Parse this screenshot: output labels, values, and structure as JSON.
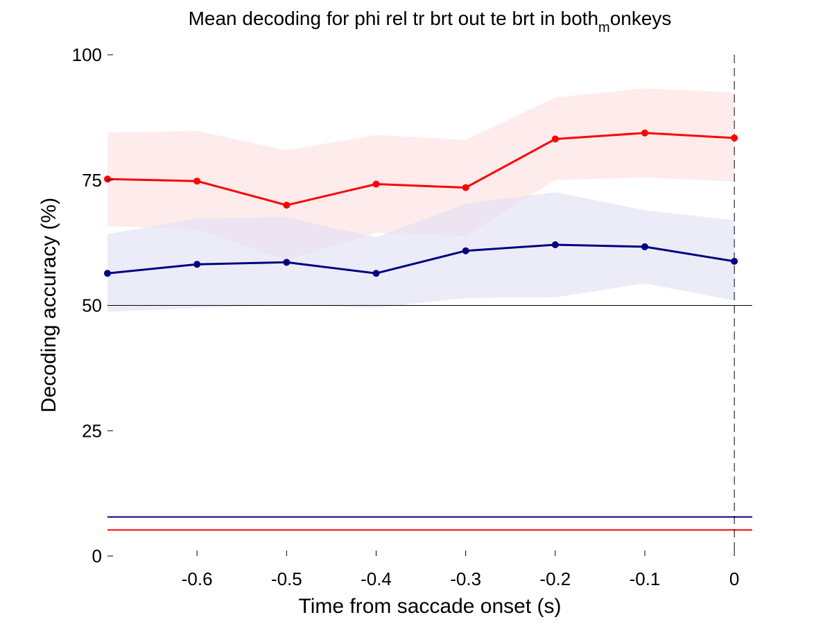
{
  "chart_data": {
    "type": "line",
    "title": {
      "main": "Mean decoding for phi rel tr brt out te brt in  both",
      "subscript": "m",
      "tail": "onkeys"
    },
    "xlabel": "Time from saccade onset (s)",
    "ylabel": "Decoding accuracy (%)",
    "xlim": [
      -0.7,
      0.02
    ],
    "ylim": [
      0,
      100
    ],
    "x_ticks": [
      -0.6,
      -0.5,
      -0.4,
      -0.3,
      -0.2,
      -0.1,
      0
    ],
    "x_tick_labels": [
      "-0.6",
      "-0.5",
      "-0.4",
      "-0.3",
      "-0.2",
      "-0.1",
      "0"
    ],
    "y_ticks": [
      0,
      25,
      50,
      75,
      100
    ],
    "y_tick_labels": [
      "0",
      "25",
      "50",
      "75",
      "100"
    ],
    "x": [
      -0.7,
      -0.6,
      -0.5,
      -0.4,
      -0.3,
      -0.2,
      -0.1,
      0
    ],
    "series": [
      {
        "color": "#ff0000",
        "band_color": "#fde0e0",
        "values": [
          75.2,
          74.8,
          70.0,
          74.2,
          73.5,
          83.2,
          84.4,
          83.4
        ],
        "lower": [
          65.8,
          65.2,
          59.0,
          64.5,
          63.8,
          75.0,
          75.5,
          74.7
        ],
        "upper": [
          84.5,
          84.8,
          81.0,
          84.0,
          83.0,
          91.5,
          93.3,
          92.5
        ]
      },
      {
        "color": "#000080",
        "band_color": "#e0e0f3",
        "values": [
          56.4,
          58.2,
          58.6,
          56.4,
          60.9,
          62.1,
          61.7,
          58.8
        ],
        "lower": [
          48.7,
          49.5,
          50.0,
          49.5,
          51.5,
          51.6,
          54.4,
          51.0
        ],
        "upper": [
          64.2,
          67.3,
          67.6,
          63.6,
          70.3,
          72.6,
          69.0,
          67.0
        ]
      }
    ],
    "reference_lines": {
      "chance_level": 50,
      "event_time": 0,
      "blue_threshold": 7.8,
      "red_threshold": 5.2
    },
    "grid": false,
    "legend": "none"
  }
}
